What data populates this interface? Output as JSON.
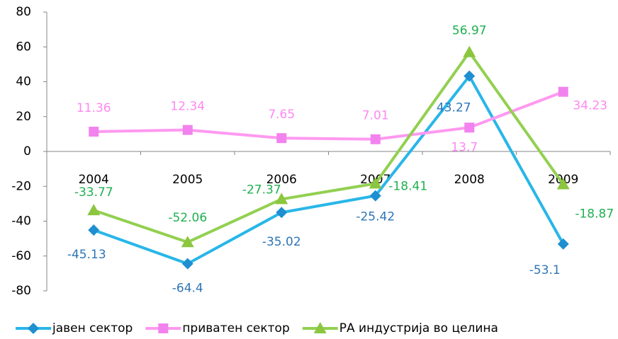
{
  "chart_data": {
    "type": "line",
    "categories": [
      "2004",
      "2005",
      "2006",
      "2007",
      "2008",
      "2009"
    ],
    "series": [
      {
        "name": "јавен сектор",
        "color": "#29b6e8",
        "marker_color": "#1e8fd0",
        "label_color": "#2e75b6",
        "marker": "diamond",
        "values": [
          -45.13,
          -64.4,
          -35.02,
          -25.42,
          43.27,
          -53.1
        ]
      },
      {
        "name": "приватен сектор",
        "color": "#ff99f0",
        "marker_color": "#f283ee",
        "label_color": "#ff88f0",
        "marker": "square",
        "values": [
          11.36,
          12.34,
          7.65,
          7.01,
          13.7,
          34.23
        ]
      },
      {
        "name": "РА индустрија во целина",
        "color": "#92d050",
        "marker_color": "#8cc63f",
        "label_color": "#1fb050",
        "marker": "triangle",
        "values": [
          -33.77,
          -52.06,
          -27.37,
          -18.41,
          56.97,
          -18.87
        ]
      }
    ],
    "ylim": [
      -80,
      80
    ],
    "yticks": [
      -80,
      -60,
      -40,
      -20,
      0,
      20,
      40,
      60,
      80
    ],
    "grid": false,
    "legend": "bottom"
  }
}
